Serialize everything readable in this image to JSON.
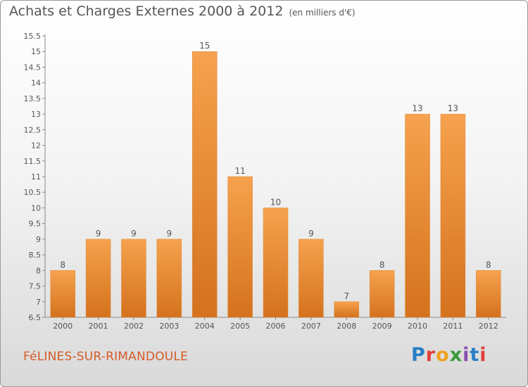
{
  "header": {
    "title": "Achats et Charges Externes 2000 à 2012",
    "unit": "(en milliers d'€)"
  },
  "footer": {
    "commune": "FéLINES-SUR-RIMANDOULE",
    "logo": "Proxiti"
  },
  "colors": {
    "bar_light": "#f6a24e",
    "bar_dark": "#d4721e",
    "text": "#555555",
    "commune": "#d35b28"
  },
  "chart_data": {
    "type": "bar",
    "title": "Achats et Charges Externes 2000 à 2012",
    "subtitle": "(en milliers d'€)",
    "categories": [
      "2000",
      "2001",
      "2002",
      "2003",
      "2004",
      "2005",
      "2006",
      "2007",
      "2008",
      "2009",
      "2010",
      "2011",
      "2012"
    ],
    "values": [
      8,
      9,
      9,
      9,
      15,
      11,
      10,
      9,
      7,
      8,
      13,
      13,
      8
    ],
    "data_labels": [
      "8",
      "9",
      "9",
      "9",
      "15",
      "11",
      "10",
      "9",
      "7",
      "8",
      "13",
      "13",
      "8"
    ],
    "ylim": [
      6.5,
      15.5
    ],
    "yticks": [
      "6.5",
      "7",
      "7.5",
      "8",
      "8.5",
      "9",
      "9.5",
      "10",
      "10.5",
      "11",
      "11.5",
      "12",
      "12.5",
      "13",
      "13.5",
      "14",
      "14.5",
      "15",
      "15.5"
    ],
    "grid": false
  }
}
